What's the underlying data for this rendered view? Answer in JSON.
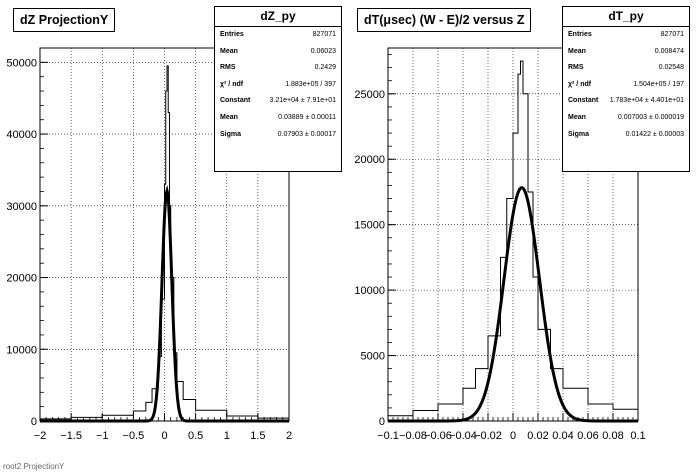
{
  "pads": [
    {
      "title": "dZ ProjectionY",
      "stats": {
        "name": "dZ_py",
        "rows": [
          {
            "label": "Entries",
            "value": "827071"
          },
          {
            "label": "Mean",
            "value": "0.06023"
          },
          {
            "label": "RMS",
            "value": "0.2429"
          },
          {
            "label": "χ² / ndf",
            "value": "1.883e+05 / 397"
          },
          {
            "label": "Constant",
            "value": "3.21e+04 ± 7.91e+01"
          },
          {
            "label": "Mean",
            "value": "0.03889 ± 0.00011"
          },
          {
            "label": "Sigma",
            "value": "0.07903 ± 0.00017"
          }
        ]
      }
    },
    {
      "title": "dT(μsec) (W - E)/2 versus Z",
      "stats": {
        "name": "dT_py",
        "rows": [
          {
            "label": "Entries",
            "value": "827071"
          },
          {
            "label": "Mean",
            "value": "0.008474"
          },
          {
            "label": "RMS",
            "value": "0.02548"
          },
          {
            "label": "χ² / ndf",
            "value": "1.504e+05 / 197"
          },
          {
            "label": "Constant",
            "value": "1.783e+04 ± 4.401e+01"
          },
          {
            "label": "Mean",
            "value": "0.007003 ± 0.000019"
          },
          {
            "label": "Sigma",
            "value": "0.01422 ± 0.00003"
          }
        ]
      }
    }
  ],
  "chart_data": [
    {
      "type": "line",
      "title": "dZ ProjectionY",
      "xlim": [
        -2,
        2
      ],
      "ylim": [
        0,
        52000
      ],
      "xticks": [
        -2,
        -1.5,
        -1,
        -0.5,
        0,
        0.5,
        1,
        1.5,
        2
      ],
      "xtick_labels": [
        "−2",
        "−1.5",
        "−1",
        "−0.5",
        "0",
        "0.5",
        "1",
        "1.5",
        "2"
      ],
      "yticks": [
        0,
        10000,
        20000,
        30000,
        40000,
        50000
      ],
      "ytick_labels": [
        "0",
        "10000",
        "20000",
        "30000",
        "40000",
        "50000"
      ],
      "grid": true,
      "legend": "none",
      "series": [
        {
          "name": "dZ_py",
          "style": "histogram",
          "x": [
            -2.0,
            -1.5,
            -1.0,
            -0.5,
            -0.3,
            -0.2,
            -0.1,
            -0.05,
            0.0,
            0.02,
            0.04,
            0.06,
            0.08,
            0.1,
            0.15,
            0.2,
            0.3,
            0.5,
            1.0,
            1.5,
            2.0
          ],
          "y": [
            300,
            500,
            800,
            1400,
            2600,
            4500,
            9000,
            17000,
            33000,
            46000,
            49500,
            43000,
            30000,
            20000,
            9500,
            5500,
            3000,
            1500,
            700,
            400,
            300
          ]
        },
        {
          "name": "gaus fit",
          "style": "fit",
          "function": "gaus",
          "constant": 32100,
          "mean": 0.03889,
          "sigma": 0.07903
        }
      ]
    },
    {
      "type": "line",
      "title": "dT(μsec) (W - E)/2 versus Z",
      "xlim": [
        -0.1,
        0.1
      ],
      "ylim": [
        0,
        28500
      ],
      "xticks": [
        -0.1,
        -0.08,
        -0.06,
        -0.04,
        -0.02,
        0,
        0.02,
        0.04,
        0.06,
        0.08,
        0.1
      ],
      "xtick_labels": [
        "−0.1",
        "−0.08",
        "−0.06",
        "−0.04",
        "−0.02",
        "0",
        "0.02",
        "0.04",
        "0.06",
        "0.08",
        "0.1"
      ],
      "yticks": [
        0,
        5000,
        10000,
        15000,
        20000,
        25000
      ],
      "ytick_labels": [
        "0",
        "5000",
        "10000",
        "15000",
        "20000",
        "25000"
      ],
      "grid": true,
      "legend": "none",
      "series": [
        {
          "name": "dT_py",
          "style": "histogram",
          "x": [
            -0.1,
            -0.08,
            -0.06,
            -0.04,
            -0.03,
            -0.02,
            -0.01,
            -0.005,
            0.0,
            0.004,
            0.006,
            0.008,
            0.012,
            0.016,
            0.02,
            0.03,
            0.04,
            0.06,
            0.08,
            0.1
          ],
          "y": [
            400,
            800,
            1300,
            2500,
            4000,
            6500,
            12500,
            17000,
            22000,
            26500,
            27500,
            25000,
            17500,
            11000,
            7000,
            4000,
            2500,
            1300,
            900,
            600
          ]
        },
        {
          "name": "gaus fit",
          "style": "fit",
          "function": "gaus",
          "constant": 17830,
          "mean": 0.007003,
          "sigma": 0.01422
        }
      ]
    }
  ],
  "footer": "root2 ProjectionY"
}
